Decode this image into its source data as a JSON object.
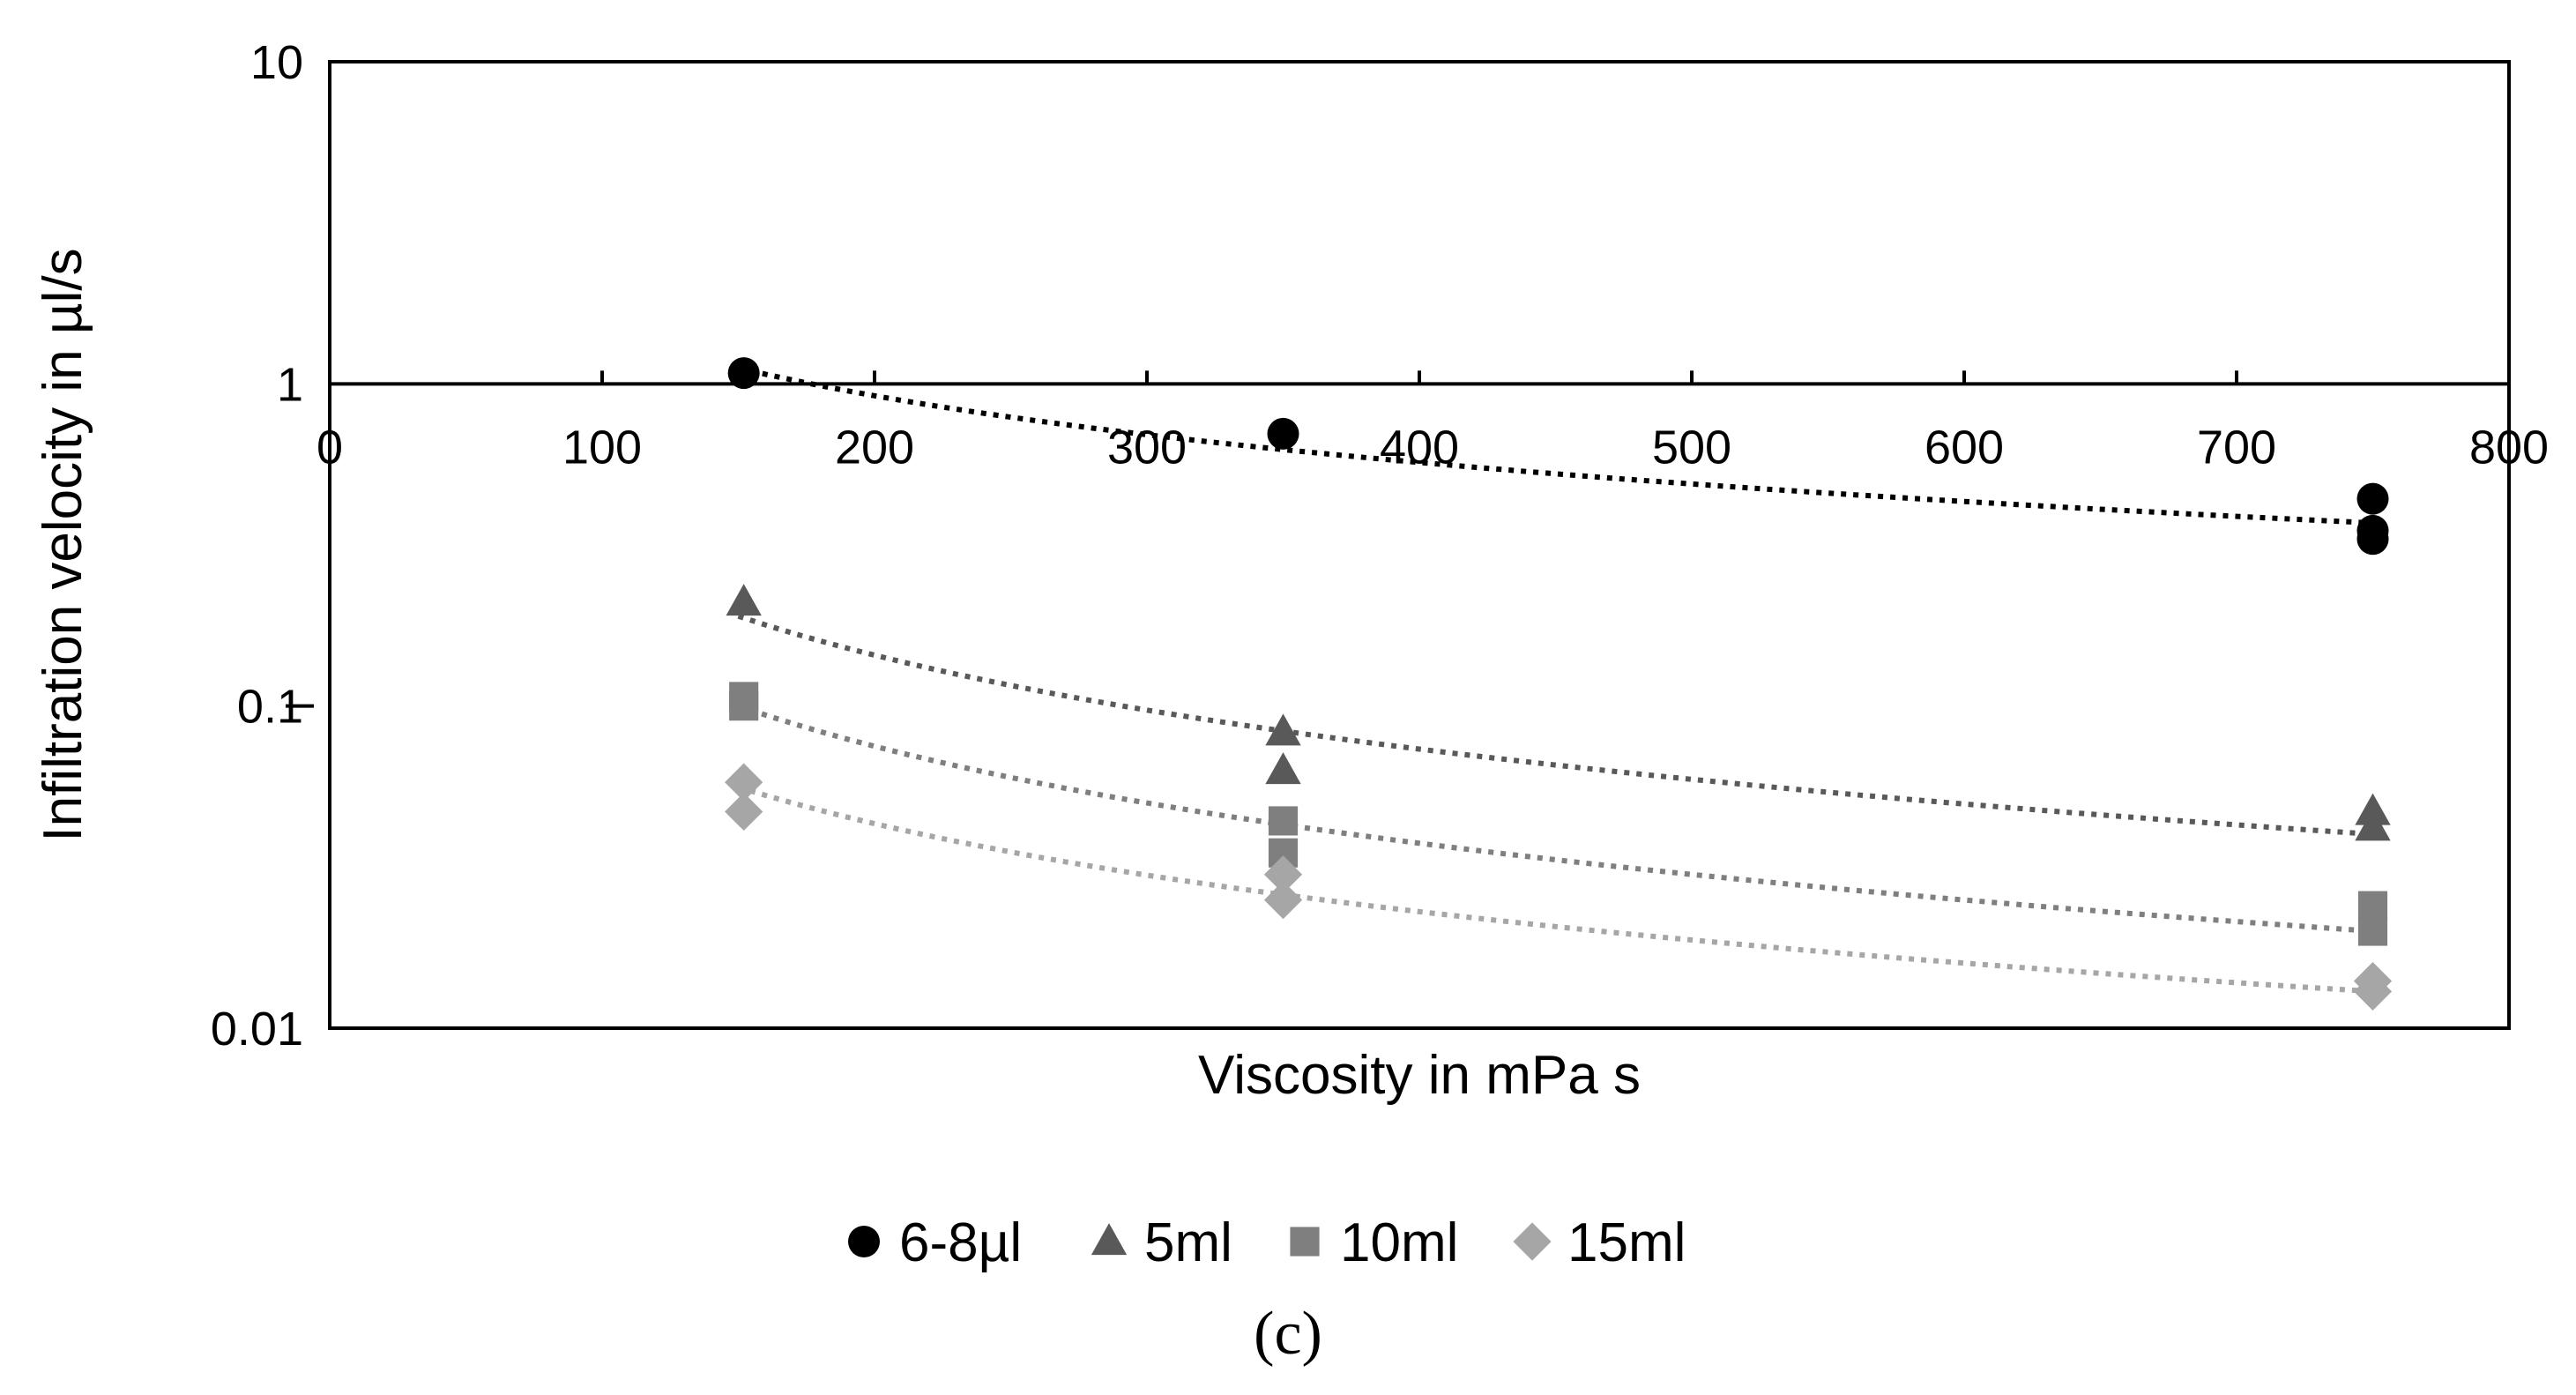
{
  "chart_data": {
    "type": "scatter",
    "title": "",
    "xlabel": "Viscosity in mPa s",
    "ylabel": "Infiltration velocity in µl/s",
    "xlim": [
      0,
      800
    ],
    "ylim": [
      0.01,
      10
    ],
    "yscale": "log",
    "x_axis_crosses_y_at": 1,
    "x_ticks": [
      0,
      100,
      200,
      300,
      400,
      500,
      600,
      700,
      800
    ],
    "x_tick_labels": [
      "0",
      "100",
      "200",
      "300",
      "400",
      "500",
      "600",
      "700",
      "800"
    ],
    "y_ticks": [
      0.01,
      0.1,
      1,
      10
    ],
    "y_tick_labels": [
      "0.01",
      "0.1",
      "1",
      "10"
    ],
    "legend_position": "bottom",
    "caption": "(c)",
    "series": [
      {
        "name": "6-8µl",
        "marker": "circle",
        "color": "#000000",
        "points": [
          [
            152,
            1.08
          ],
          [
            350,
            0.7
          ],
          [
            750,
            0.44
          ],
          [
            750,
            0.35
          ],
          [
            750,
            0.33
          ]
        ],
        "trend": {
          "type": "power",
          "from": 150,
          "to": 750,
          "y_start": 1.12,
          "y_end": 0.37
        }
      },
      {
        "name": "5ml",
        "marker": "triangle",
        "color": "#595959",
        "points": [
          [
            152,
            0.21
          ],
          [
            350,
            0.083
          ],
          [
            350,
            0.063
          ],
          [
            750,
            0.047
          ],
          [
            750,
            0.042
          ]
        ],
        "trend": {
          "type": "power",
          "from": 150,
          "to": 750,
          "y_start": 0.19,
          "y_end": 0.04
        }
      },
      {
        "name": "10ml",
        "marker": "square",
        "color": "#7f7f7f",
        "points": [
          [
            152,
            0.107
          ],
          [
            152,
            0.1
          ],
          [
            350,
            0.044
          ],
          [
            350,
            0.035
          ],
          [
            750,
            0.024
          ],
          [
            750,
            0.02
          ]
        ],
        "trend": {
          "type": "power",
          "from": 150,
          "to": 750,
          "y_start": 0.1,
          "y_end": 0.02
        }
      },
      {
        "name": "15ml",
        "marker": "diamond",
        "color": "#a6a6a6",
        "points": [
          [
            152,
            0.058
          ],
          [
            152,
            0.047
          ],
          [
            350,
            0.03
          ],
          [
            350,
            0.025
          ],
          [
            750,
            0.014
          ],
          [
            750,
            0.013
          ]
        ],
        "trend": {
          "type": "power",
          "from": 150,
          "to": 750,
          "y_start": 0.056,
          "y_end": 0.013
        }
      }
    ]
  }
}
